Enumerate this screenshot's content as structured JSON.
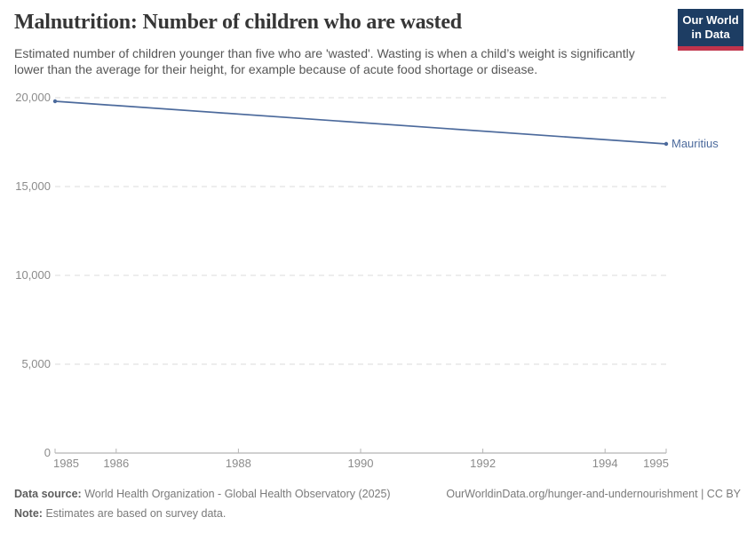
{
  "header": {
    "title": "Malnutrition: Number of children who are wasted",
    "subtitle": "Estimated number of children younger than five who are 'wasted'. Wasting is when a child’s weight is significantly lower than the average for their height, for example because of acute food shortage or disease.",
    "logo": {
      "line1": "Our World",
      "line2": "in Data"
    }
  },
  "chart_data": {
    "type": "line",
    "title": "Malnutrition: Number of children who are wasted",
    "xlabel": "",
    "ylabel": "",
    "xlim": [
      1985,
      1995
    ],
    "ylim": [
      0,
      20000
    ],
    "grid": "horizontal-dashed",
    "legend_position": "end-of-line-label",
    "xticks": [
      1985,
      1986,
      1988,
      1990,
      1992,
      1994,
      1995
    ],
    "xtick_labels": [
      "1985",
      "1986",
      "1988",
      "1990",
      "1992",
      "1994",
      "1995"
    ],
    "yticks": [
      0,
      5000,
      10000,
      15000,
      20000
    ],
    "ytick_labels": [
      "0",
      "5,000",
      "10,000",
      "15,000",
      "20,000"
    ],
    "series": [
      {
        "name": "Mauritius",
        "color": "#4C6A9C",
        "x": [
          1985,
          1995
        ],
        "y": [
          19800,
          17400
        ]
      }
    ]
  },
  "footer": {
    "datasource_label": "Data source:",
    "datasource_text": "World Health Organization - Global Health Observatory (2025)",
    "note_label": "Note:",
    "note_text": "Estimates are based on survey data.",
    "attribution": "OurWorldinData.org/hunger-and-undernourishment | CC BY"
  },
  "colors": {
    "series_line": "#4C6A9C",
    "logo_background": "#1d3d63",
    "logo_bar": "#c0344c",
    "grid": "#e2e2e2",
    "axis": "#a1a1a1",
    "tick": "#b5b5b5",
    "tick_text": "#8b8b8b"
  }
}
